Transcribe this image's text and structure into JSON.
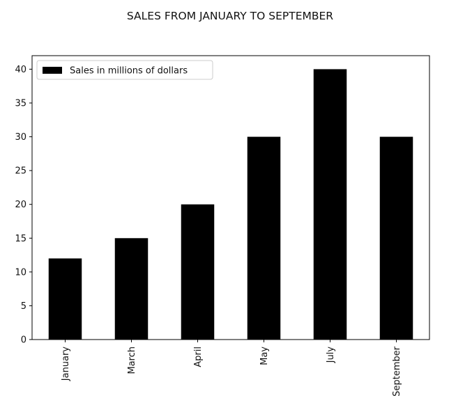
{
  "chart_data": {
    "type": "bar",
    "title": "SALES FROM JANUARY TO SEPTEMBER",
    "xlabel": "",
    "ylabel": "",
    "categories": [
      "January",
      "March",
      "April",
      "May",
      "July",
      "September"
    ],
    "series": [
      {
        "name": "Sales in millions of dollars",
        "values": [
          12,
          15,
          20,
          30,
          40,
          30
        ],
        "color": "#000000"
      }
    ],
    "ylim": [
      0,
      42
    ],
    "yticks": [
      0,
      5,
      10,
      15,
      20,
      25,
      30,
      35,
      40
    ],
    "grid": false,
    "legend_position": "top-left",
    "x_tick_rotation": "vertical"
  }
}
